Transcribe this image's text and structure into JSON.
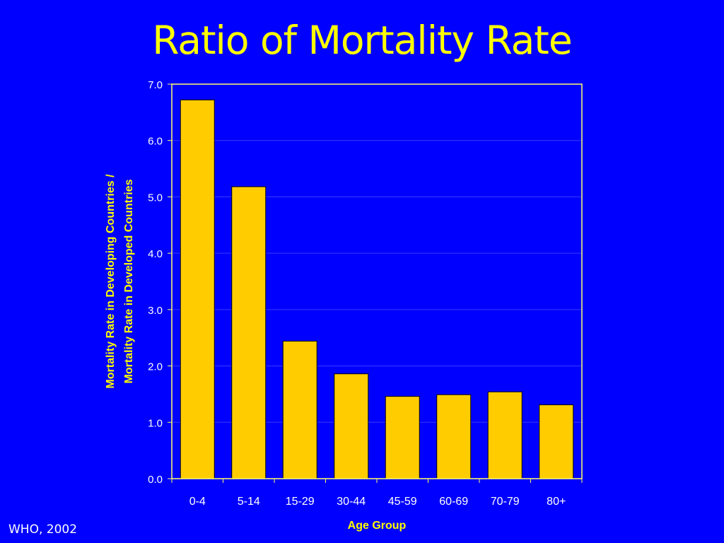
{
  "slide": {
    "title": "Ratio of Mortality Rate",
    "source": "WHO, 2002"
  },
  "colors": {
    "background": "#0000ff",
    "bar_fill": "#ffcc00",
    "bar_stroke": "#000000",
    "axis": "#ffff66",
    "text": "#ffffff",
    "axis_title": "#ffff00",
    "grid": "#3b3bff"
  },
  "chart_data": {
    "type": "bar",
    "categories": [
      "0-4",
      "5-14",
      "15-29",
      "30-44",
      "45-59",
      "60-69",
      "70-79",
      "80+"
    ],
    "values": [
      6.72,
      5.18,
      2.44,
      1.86,
      1.46,
      1.49,
      1.54,
      1.31
    ],
    "xlabel": "Age Group",
    "ylabel": [
      "Mortality Rate in Developing Countries /",
      "Mortality Rate in Developed Countries"
    ],
    "ylim": [
      0,
      7
    ],
    "yticks": [
      "0.0",
      "1.0",
      "2.0",
      "3.0",
      "4.0",
      "5.0",
      "6.0",
      "7.0"
    ],
    "grid": true,
    "legend": "none"
  }
}
